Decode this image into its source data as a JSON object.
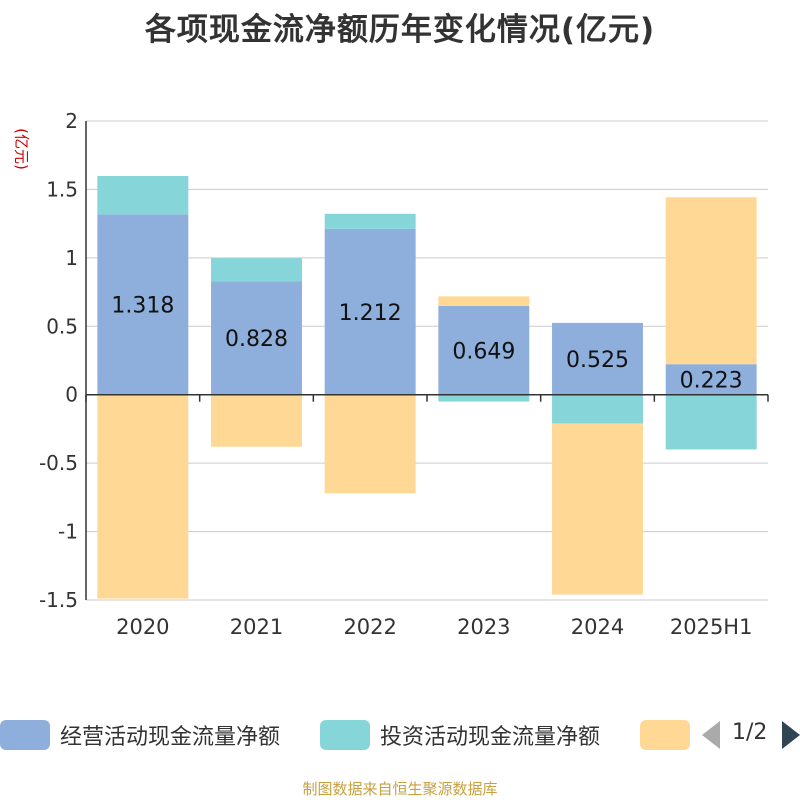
{
  "title": "各项现金流净额历年变化情况(亿元)",
  "unit_label": "(亿元)",
  "source": "制图数据来自恒生聚源数据库",
  "pager": {
    "text": "1/2"
  },
  "colors": {
    "operating": "#8eaedb",
    "investing": "#86d5d8",
    "financing": "#ffd896",
    "grid": "#cccccc",
    "axis": "#333333"
  },
  "chart_data": {
    "type": "bar",
    "stacked": true,
    "title": "各项现金流净额历年变化情况(亿元)",
    "ylabel": "(亿元)",
    "ylim": [
      -1.5,
      2
    ],
    "yticks": [
      -1.5,
      -1,
      -0.5,
      0,
      0.5,
      1,
      1.5,
      2
    ],
    "categories": [
      "2020",
      "2021",
      "2022",
      "2023",
      "2024",
      "2025H1"
    ],
    "series": [
      {
        "name": "经营活动现金流量净额",
        "values": [
          1.318,
          0.828,
          1.212,
          0.649,
          0.525,
          0.223
        ],
        "labels": [
          "1.318",
          "0.828",
          "1.212",
          "0.649",
          "0.525",
          "0.223"
        ]
      },
      {
        "name": "投资活动现金流量净额",
        "values": [
          0.28,
          0.17,
          0.11,
          -0.05,
          -0.21,
          -0.4
        ]
      },
      {
        "values": [
          -1.49,
          -0.38,
          -0.72,
          0.07,
          -1.25,
          1.22
        ]
      }
    ],
    "legend_position": "bottom",
    "grid": true
  }
}
